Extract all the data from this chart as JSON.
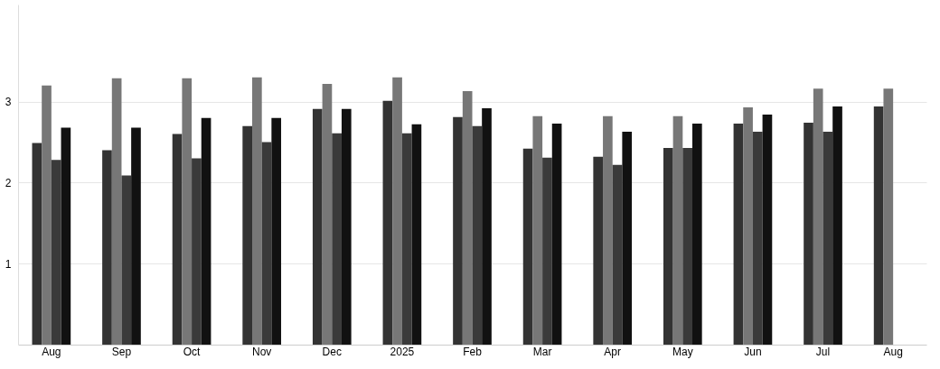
{
  "chart_data": {
    "type": "bar",
    "categories": [
      "Aug",
      "Sep",
      "Oct",
      "Nov",
      "Dec",
      "2025",
      "Feb",
      "Mar",
      "Apr",
      "May",
      "Jun",
      "Jul",
      "Aug"
    ],
    "series": [
      {
        "color": "#333333",
        "values": [
          2.49,
          2.4,
          2.6,
          2.7,
          2.91,
          3.01,
          2.81,
          2.42,
          2.32,
          2.43,
          2.73,
          2.74,
          2.94
        ]
      },
      {
        "color": "#777777",
        "values": [
          3.2,
          3.29,
          3.29,
          3.3,
          3.22,
          3.3,
          3.13,
          2.82,
          2.82,
          2.82,
          2.93,
          3.16,
          3.16
        ]
      },
      {
        "color": "#3a3a3a",
        "values": [
          2.28,
          2.09,
          2.3,
          2.5,
          2.61,
          2.61,
          2.7,
          2.31,
          2.22,
          2.43,
          2.63,
          2.63,
          null
        ]
      },
      {
        "color": "#111111",
        "values": [
          2.68,
          2.68,
          2.8,
          2.8,
          2.91,
          2.72,
          2.92,
          2.73,
          2.63,
          2.73,
          2.84,
          2.94,
          null
        ]
      }
    ],
    "ylim": [
      0,
      4.2
    ],
    "yticks": [
      1,
      2,
      3
    ],
    "grid": "y"
  }
}
